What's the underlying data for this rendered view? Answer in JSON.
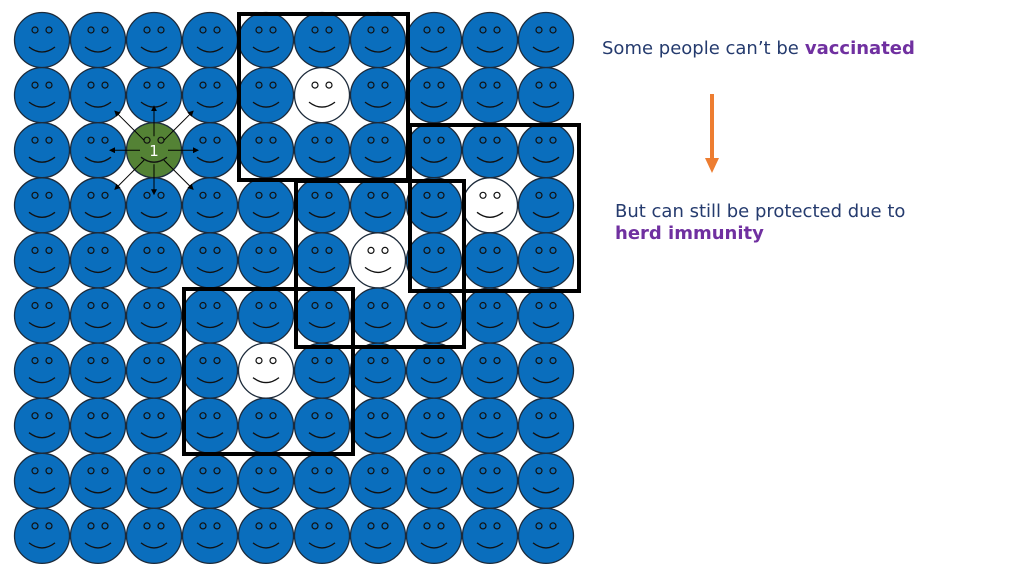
{
  "notes": [
    {
      "text": "Some people can’t be",
      "emphasis": "vaccinated"
    },
    {
      "text": "But can still be protected due to",
      "emphasis": "herd immunity"
    }
  ],
  "marker_label": "1"
}
